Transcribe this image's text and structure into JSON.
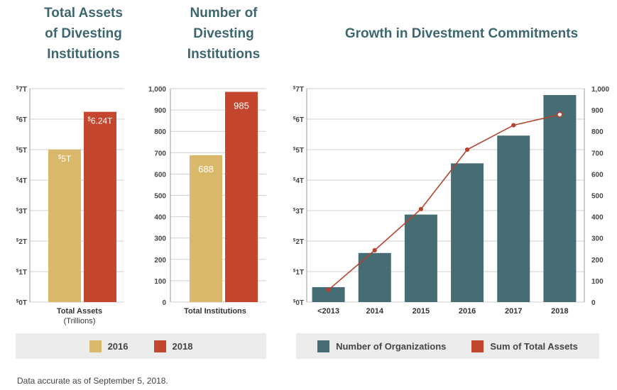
{
  "colors": {
    "y2016": "#d9b86a",
    "y2018": "#c5462f",
    "teal": "#466d73",
    "line": "#b5442f",
    "title": "#3e6670"
  },
  "legend_left": {
    "item1": "2016",
    "item2": "2018"
  },
  "legend_right": {
    "item1": "Number of Organizations",
    "item2": "Sum of Total Assets"
  },
  "footnote": "Data accurate as of September 5, 2018.",
  "chart_data": [
    {
      "type": "bar",
      "title": "Total Assets of Divesting Institutions",
      "categories": [
        "Total Assets"
      ],
      "xlabel": "(Trillions)",
      "series": [
        {
          "name": "2016",
          "values": [
            5
          ],
          "labels": [
            "$5T"
          ]
        },
        {
          "name": "2018",
          "values": [
            6.24
          ],
          "labels": [
            "$6.24T"
          ]
        }
      ],
      "ylim": [
        0,
        7
      ],
      "yticks": [
        "$0T",
        "$1T",
        "$2T",
        "$3T",
        "$4T",
        "$5T",
        "$6T",
        "$7T"
      ]
    },
    {
      "type": "bar",
      "title": "Number of Divesting Institutions",
      "categories": [
        "Total Institutions"
      ],
      "series": [
        {
          "name": "2016",
          "values": [
            688
          ],
          "labels": [
            "688"
          ]
        },
        {
          "name": "2018",
          "values": [
            985
          ],
          "labels": [
            "985"
          ]
        }
      ],
      "ylim": [
        0,
        1000
      ],
      "yticks": [
        "0",
        "100",
        "200",
        "300",
        "400",
        "500",
        "600",
        "700",
        "800",
        "900",
        "1,000"
      ]
    },
    {
      "type": "bar",
      "title": "Growth in Divestment Commitments",
      "categories": [
        "<2013",
        "2014",
        "2015",
        "2016",
        "2017",
        "2018"
      ],
      "series": [
        {
          "name": "Number of Organizations",
          "type": "bar",
          "axis": "right",
          "values": [
            70,
            230,
            410,
            650,
            780,
            970
          ]
        },
        {
          "name": "Sum of Total Assets",
          "type": "line",
          "axis": "left",
          "values": [
            0.4,
            1.7,
            3.05,
            5.0,
            5.8,
            6.15
          ]
        }
      ],
      "ylim_left": [
        0,
        7
      ],
      "ylim_right": [
        0,
        1000
      ],
      "yticks_left": [
        "$0T",
        "$1T",
        "$2T",
        "$3T",
        "$4T",
        "$5T",
        "$6T",
        "$7T"
      ],
      "yticks_right": [
        "0",
        "100",
        "200",
        "300",
        "400",
        "500",
        "600",
        "700",
        "800",
        "900",
        "1,000"
      ]
    }
  ]
}
